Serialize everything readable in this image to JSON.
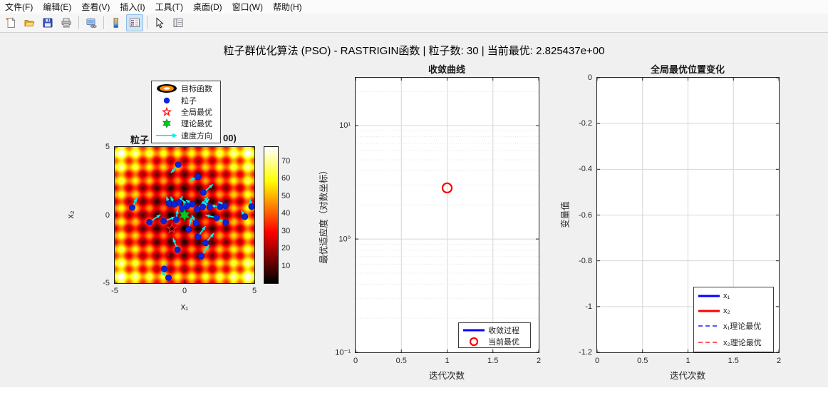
{
  "window": {
    "menu_items": [
      "文件(F)",
      "编辑(E)",
      "查看(V)",
      "插入(I)",
      "工具(T)",
      "桌面(D)",
      "窗口(W)",
      "帮助(H)"
    ],
    "toolbar_buttons": [
      "new-figure",
      "open-file",
      "save-figure",
      "print-figure",
      "link-plot",
      "insert-colorbar",
      "insert-legend",
      "edit-plot",
      "property-inspector"
    ],
    "toolbar_active_button": "insert-legend"
  },
  "title": "粒子群优化算法 (PSO) - RASTRIGIN函数 | 粒子数: 30 | 当前最优: 2.825437e+00",
  "colors": {
    "figure_bg": "#f0f0f0",
    "axes_text": "#262626",
    "blue": "#0000ff",
    "red": "#ff0000",
    "green": "#00cc22",
    "cyan": "#00f0f0",
    "particle_blue": "#0a23dd"
  },
  "chart_data": [
    {
      "type": "heatmap",
      "title_fragments": {
        "left": "粒子",
        "right": "00)"
      },
      "xlabel": "x₁",
      "ylabel": "x₂",
      "xlim": [
        -5,
        5
      ],
      "ylim": [
        -5,
        5
      ],
      "xtick_values": [
        -5,
        0,
        5
      ],
      "xtick_labels": [
        "-5",
        "0",
        "5"
      ],
      "ytick_values": [
        5,
        0,
        -5
      ],
      "ytick_labels": [
        "5",
        "0",
        "-5"
      ],
      "surface": {
        "function": "rastrigin",
        "formula": "f(x,y) = 20 + x^2 + y^2 - 10cos(2*pi*x) - 10cos(2*pi*y)",
        "colormap": "hot",
        "clim": [
          0,
          78
        ]
      },
      "colorbar": {
        "tick_values": [
          10,
          20,
          30,
          40,
          50,
          60,
          70
        ],
        "tick_labels": [
          "10",
          "20",
          "30",
          "40",
          "50",
          "60",
          "70"
        ]
      },
      "legend": {
        "position": "above-plot-center",
        "items": [
          {
            "label": "目标函数",
            "marker": "contour-patch"
          },
          {
            "label": "粒子",
            "marker": "blue-dot"
          },
          {
            "label": "全局最优",
            "marker": "red-star"
          },
          {
            "label": "理论最优",
            "marker": "green-star"
          },
          {
            "label": "速度方向",
            "marker": "cyan-arrow"
          }
        ]
      },
      "particles": [
        [
          -0.45,
          3.7,
          -0.52,
          -0.6
        ],
        [
          0.95,
          2.8,
          -0.58,
          -0.26
        ],
        [
          -3.75,
          0.55,
          0.33,
          0.7
        ],
        [
          -1.1,
          0.85,
          -0.2,
          0.5
        ],
        [
          -0.72,
          0.8,
          -0.28,
          0.55
        ],
        [
          -0.4,
          0.92,
          0.25,
          0.45
        ],
        [
          0.2,
          0.68,
          -0.35,
          0.42
        ],
        [
          1.35,
          1.65,
          0.68,
          0.6
        ],
        [
          0.9,
          0.42,
          0.78,
          0.9
        ],
        [
          1.3,
          0.6,
          0.45,
          0.58
        ],
        [
          1.8,
          0.58,
          -0.55,
          0.4
        ],
        [
          2.55,
          0.6,
          -0.65,
          0.1
        ],
        [
          2.92,
          0.68,
          -0.5,
          0.3
        ],
        [
          4.8,
          0.62,
          -0.12,
          0.55
        ],
        [
          -2.52,
          -0.52,
          0.8,
          0.55
        ],
        [
          -1.5,
          -0.45,
          0.85,
          0.3
        ],
        [
          -0.6,
          -0.35,
          0.1,
          0.75
        ],
        [
          2.3,
          -0.2,
          -0.8,
          0.2
        ],
        [
          2.95,
          -0.55,
          -0.85,
          0.35
        ],
        [
          4.32,
          -0.12,
          -0.25,
          0.45
        ],
        [
          0.3,
          -1.05,
          0.18,
          0.85
        ],
        [
          0.95,
          -1.6,
          0.55,
          0.78
        ],
        [
          1.5,
          -2.05,
          0.6,
          0.72
        ],
        [
          -0.5,
          -2.55,
          -0.32,
          0.85
        ],
        [
          1.2,
          -3.0,
          0.55,
          0.8
        ],
        [
          -1.45,
          -3.95,
          0.12,
          0.38
        ],
        [
          -1.15,
          -4.6,
          -0.52,
          0.42
        ],
        [
          0.82,
          -0.58,
          -0.3,
          0.55
        ],
        [
          -0.15,
          0.5,
          0.3,
          0.4
        ],
        [
          0.55,
          0.8,
          -0.45,
          0.3
        ]
      ],
      "global_best": [
        -0.9,
        -1.0
      ],
      "theoretical_best": [
        0,
        0
      ]
    },
    {
      "type": "scatter",
      "title": "收敛曲线",
      "xlabel": "迭代次数",
      "ylabel": "最优适应度（对数坐标）",
      "xlim": [
        0,
        2
      ],
      "xtick_values": [
        0,
        0.5,
        1,
        1.5,
        2
      ],
      "xtick_labels": [
        "0",
        "0.5",
        "1",
        "1.5",
        "2"
      ],
      "yscale": "log",
      "ylim": [
        0.1,
        26.5
      ],
      "ytick_values": [
        10,
        1,
        0.1
      ],
      "ytick_labels": [
        "10¹",
        "10⁰",
        "10⁻¹"
      ],
      "grid": {
        "major": true,
        "minor": true
      },
      "series": [
        {
          "name": "收敛过程",
          "style": "solid-line",
          "color": "#0000ff",
          "points": []
        },
        {
          "name": "当前最优",
          "style": "circle-marker",
          "color": "#ff0000",
          "points": [
            [
              1,
              2.825437
            ]
          ]
        }
      ],
      "legend": {
        "position": "bottom-right"
      }
    },
    {
      "type": "line",
      "title": "全局最优位置变化",
      "xlabel": "迭代次数",
      "ylabel": "变量值",
      "xlim": [
        0,
        2
      ],
      "xtick_values": [
        0,
        0.5,
        1,
        1.5,
        2
      ],
      "xtick_labels": [
        "0",
        "0.5",
        "1",
        "1.5",
        "2"
      ],
      "ylim": [
        -1.2,
        0
      ],
      "ytick_values": [
        0,
        -0.2,
        -0.4,
        -0.6,
        -0.8,
        -1,
        -1.2
      ],
      "ytick_labels": [
        "0",
        "-0.2",
        "-0.4",
        "-0.6",
        "-0.8",
        "-1",
        "-1.2"
      ],
      "grid": {
        "major": true,
        "minor": false
      },
      "series": [
        {
          "name": "x₁",
          "style": "solid-line",
          "color": "#0000ff",
          "points": []
        },
        {
          "name": "x₂",
          "style": "solid-line",
          "color": "#ff0000",
          "points": []
        },
        {
          "name": "x₁理论最优",
          "style": "dashed-line",
          "color": "#3a3aff",
          "points": []
        },
        {
          "name": "x₂理论最优",
          "style": "dashed-line",
          "color": "#ff3a3a",
          "points": []
        }
      ],
      "legend": {
        "position": "bottom-right"
      }
    }
  ]
}
